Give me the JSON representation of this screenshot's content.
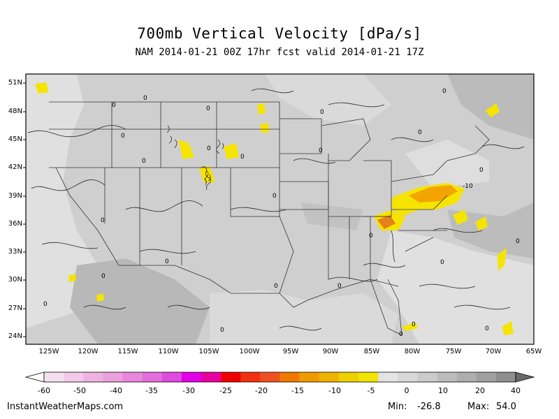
{
  "header": {
    "title": "700mb Vertical Velocity [dPa/s]",
    "subtitle": "NAM 2014-01-21 00Z 17hr fcst valid 2014-01-21 17Z"
  },
  "map": {
    "lat_labels": [
      "51N",
      "48N",
      "45N",
      "42N",
      "39N",
      "36N",
      "33N",
      "30N",
      "27N",
      "24N"
    ],
    "lon_labels": [
      "125W",
      "120W",
      "115W",
      "110W",
      "105W",
      "100W",
      "95W",
      "90W",
      "85W",
      "80W",
      "75W",
      "70W",
      "65W"
    ],
    "contour_label": "0",
    "contour_label_neg": "-10",
    "colors": {
      "background_field": "#cfcfcf",
      "light_field": "#e4e4e4",
      "dark_field": "#b0b0b0",
      "yellow": "#f5e400",
      "orange": "#f3a400",
      "deep_orange": "#e6801a"
    }
  },
  "colorbar": {
    "tick_labels": [
      "-60",
      "-50",
      "-40",
      "-35",
      "-30",
      "-25",
      "-20",
      "-15",
      "-10",
      "-5",
      "0",
      "10",
      "20",
      "40"
    ],
    "colors": [
      "#f5e0f0",
      "#f2cbe9",
      "#eeb3e3",
      "#eba0df",
      "#e887dd",
      "#e46ddc",
      "#e04adf",
      "#e200e6",
      "#e800a0",
      "#f00000",
      "#f03010",
      "#f05020",
      "#f07a00",
      "#f09a00",
      "#f0b400",
      "#f0d000",
      "#f0e400",
      "#e4e4e4",
      "#d8d8d8",
      "#cbcbcb",
      "#bcbcbc",
      "#aeaeae",
      "#a0a0a0",
      "#8e8e8e"
    ]
  },
  "footer": {
    "site": "InstantWeatherMaps.com",
    "min_label": "Min:",
    "min_value": "-26.8",
    "max_label": "Max:",
    "max_value": "54.0"
  }
}
